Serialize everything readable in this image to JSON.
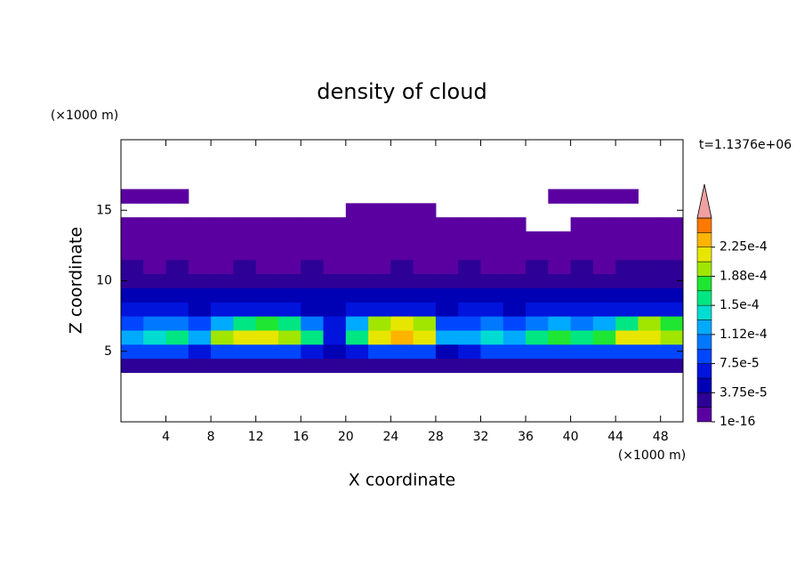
{
  "chart_data": {
    "type": "contour",
    "title": "density of cloud",
    "xlabel": "X coordinate",
    "ylabel": "Z coordinate",
    "x_unit": "(×1000 m)",
    "y_unit": "(×1000 m)",
    "annotation": "t=1.1376e+06",
    "xlim": [
      0,
      50
    ],
    "ylim": [
      0,
      20
    ],
    "xticks": [
      4,
      8,
      12,
      16,
      20,
      24,
      28,
      32,
      36,
      40,
      44,
      48
    ],
    "yticks": [
      5,
      10,
      15
    ],
    "x": [
      1,
      3,
      5,
      7,
      9,
      11,
      13,
      15,
      17,
      19,
      21,
      23,
      25,
      27,
      29,
      31,
      33,
      35,
      37,
      39,
      41,
      43,
      45,
      47,
      49
    ],
    "z": [
      4,
      5,
      6,
      7,
      8,
      9,
      10,
      11,
      12,
      13,
      14,
      15,
      16
    ],
    "values": [
      [
        3e-05,
        3e-05,
        3e-05,
        3e-05,
        3e-05,
        3e-05,
        3e-05,
        3e-05,
        3e-05,
        2e-05,
        2e-05,
        3e-05,
        3e-05,
        3e-05,
        2e-05,
        3e-05,
        3e-05,
        3e-05,
        3e-05,
        3e-05,
        3e-05,
        3e-05,
        3e-05,
        3e-05,
        3e-05
      ],
      [
        8e-05,
        8e-05,
        8e-05,
        7e-05,
        8e-05,
        8e-05,
        8e-05,
        8e-05,
        7e-05,
        5e-05,
        7e-05,
        8e-05,
        8e-05,
        8e-05,
        5e-05,
        7e-05,
        8e-05,
        8e-05,
        8e-05,
        8e-05,
        8e-05,
        8e-05,
        8e-05,
        8e-05,
        8e-05
      ],
      [
        0.00013,
        0.00014,
        0.00015,
        0.00013,
        0.00019,
        0.00021,
        0.00021,
        0.0002,
        0.00016,
        7e-05,
        0.00016,
        0.00022,
        0.00023,
        0.00022,
        0.00012,
        0.00013,
        0.00014,
        0.00013,
        0.00015,
        0.00017,
        0.00016,
        0.00018,
        0.00021,
        0.00022,
        0.0002
      ],
      [
        9e-05,
        0.0001,
        0.00011,
        8e-05,
        0.00013,
        0.00016,
        0.00017,
        0.00015,
        0.0001,
        6e-05,
        0.00013,
        0.0002,
        0.00021,
        0.00019,
        9e-05,
        9e-05,
        0.0001,
        9e-05,
        0.0001,
        0.00012,
        0.00011,
        0.00013,
        0.00016,
        0.00019,
        0.00017
      ],
      [
        6e-05,
        6e-05,
        7e-05,
        5e-05,
        6e-05,
        6e-05,
        7e-05,
        6e-05,
        5e-05,
        5e-05,
        6e-05,
        7e-05,
        7e-05,
        6e-05,
        5e-05,
        6e-05,
        6e-05,
        5e-05,
        6e-05,
        6e-05,
        6e-05,
        6e-05,
        7e-05,
        7e-05,
        6e-05
      ],
      [
        4e-05,
        4e-05,
        4e-05,
        4e-05,
        4e-05,
        4e-05,
        4e-05,
        4e-05,
        4e-05,
        4e-05,
        4e-05,
        4e-05,
        4e-05,
        4e-05,
        4e-05,
        4e-05,
        4e-05,
        4e-05,
        4e-05,
        4e-05,
        4e-05,
        4e-05,
        4e-05,
        4e-05,
        4e-05
      ],
      [
        3e-05,
        2e-05,
        3e-05,
        2e-05,
        2e-05,
        3e-05,
        2e-05,
        2e-05,
        3e-05,
        2e-05,
        2e-05,
        2e-05,
        3e-05,
        2e-05,
        2e-05,
        3e-05,
        2e-05,
        2e-05,
        3e-05,
        2e-05,
        3e-05,
        2e-05,
        3e-05,
        3e-05,
        3e-05
      ],
      [
        2e-05,
        1e-05,
        2e-05,
        1e-05,
        1e-05,
        2e-05,
        1e-05,
        1e-05,
        2e-05,
        1e-05,
        1e-05,
        1e-05,
        2e-05,
        1e-05,
        1e-05,
        2e-05,
        1e-05,
        1e-05,
        2e-05,
        1e-05,
        2e-05,
        1e-05,
        2e-05,
        2e-05,
        2e-05
      ],
      [
        1e-05,
        1e-05,
        1e-05,
        1e-05,
        1e-05,
        1e-05,
        1e-05,
        1e-05,
        1e-05,
        1e-05,
        1e-05,
        1e-05,
        1e-05,
        1e-05,
        1e-05,
        1e-05,
        1e-05,
        1e-05,
        1e-05,
        1e-05,
        1e-05,
        1e-05,
        1e-05,
        1e-05,
        1e-05
      ],
      [
        1e-05,
        1e-05,
        1e-05,
        1e-05,
        1e-05,
        1e-05,
        1e-05,
        1e-05,
        1e-05,
        1e-05,
        1e-05,
        1e-05,
        1e-05,
        1e-05,
        1e-05,
        1e-05,
        1e-05,
        1e-05,
        1e-05,
        1e-05,
        1e-05,
        1e-05,
        1e-05,
        1e-05,
        1e-05
      ],
      [
        1e-05,
        1e-05,
        1e-05,
        1e-05,
        1e-05,
        1e-05,
        1e-05,
        1e-05,
        1e-05,
        1e-05,
        1e-05,
        1e-05,
        1e-05,
        1e-05,
        1e-05,
        1e-05,
        1e-05,
        1e-05,
        null,
        null,
        1e-05,
        1e-05,
        1e-05,
        1e-05,
        1e-05
      ],
      [
        null,
        null,
        null,
        null,
        null,
        null,
        null,
        null,
        null,
        null,
        1e-05,
        1e-05,
        1e-05,
        1e-05,
        null,
        null,
        null,
        null,
        null,
        null,
        null,
        null,
        null,
        null,
        null
      ],
      [
        1e-05,
        1e-05,
        1e-05,
        null,
        null,
        null,
        null,
        null,
        null,
        null,
        null,
        null,
        null,
        null,
        null,
        null,
        null,
        null,
        null,
        1e-05,
        1e-05,
        1e-05,
        1e-05,
        null,
        null
      ]
    ],
    "colorbar": {
      "levels": [
        1e-16,
        1.875e-05,
        3.75e-05,
        5.625e-05,
        7.5e-05,
        9.375e-05,
        0.0001125,
        0.00013125,
        0.00015,
        0.00016875,
        0.0001875,
        0.00020625,
        0.000225,
        0.00024375,
        0.0002625
      ],
      "colors": [
        "#5a00a0",
        "#2d0096",
        "#0000b4",
        "#0014dc",
        "#0046ff",
        "#0078ff",
        "#00aaff",
        "#00dcd2",
        "#00e682",
        "#1ee632",
        "#a0e600",
        "#e6e600",
        "#ffb400",
        "#ff7800"
      ],
      "extend_color": "#f0a0a0",
      "ticks": [
        {
          "value": 1e-16,
          "label": "1e-16"
        },
        {
          "value": 3.75e-05,
          "label": "3.75e-5"
        },
        {
          "value": 7.5e-05,
          "label": "7.5e-5"
        },
        {
          "value": 0.0001125,
          "label": "1.12e-4"
        },
        {
          "value": 0.00015,
          "label": "1.5e-4"
        },
        {
          "value": 0.0001875,
          "label": "1.88e-4"
        },
        {
          "value": 0.000225,
          "label": "2.25e-4"
        }
      ]
    }
  }
}
